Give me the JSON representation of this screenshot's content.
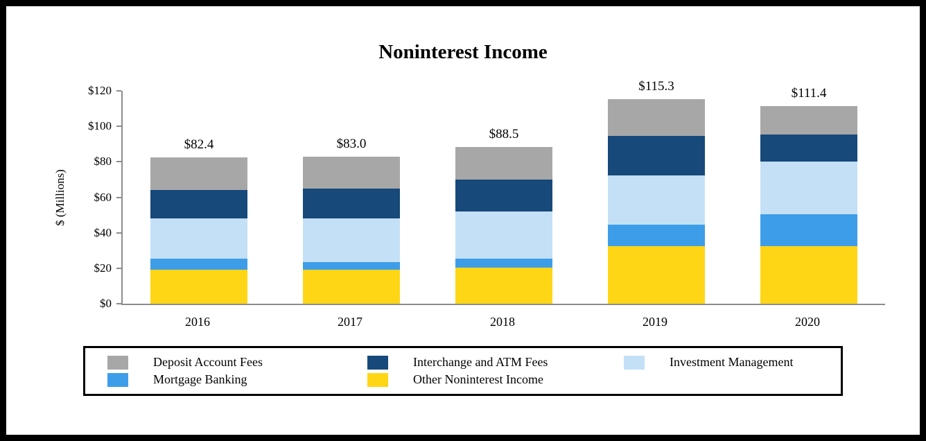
{
  "title": "Noninterest Income",
  "ylabel": "$ (Millions)",
  "chart_data": {
    "type": "bar",
    "stacked": true,
    "title": "Noninterest Income",
    "xlabel": "",
    "ylabel": "$ (Millions)",
    "ylim": [
      0,
      120
    ],
    "grid": false,
    "legend_position": "bottom",
    "categories": [
      "2016",
      "2017",
      "2018",
      "2019",
      "2020"
    ],
    "totals": [
      "$82.4",
      "$83.0",
      "$88.5",
      "$115.3",
      "$111.4"
    ],
    "total_values": [
      82.4,
      83.0,
      88.5,
      115.3,
      111.4
    ],
    "y_ticks": [
      "$0",
      "$20",
      "$40",
      "$60",
      "$80",
      "$100",
      "$120"
    ],
    "series": [
      {
        "name": "Other Noninterest Income",
        "color": "#FFD616",
        "values": [
          19.0,
          19.0,
          20.5,
          32.5,
          32.5
        ]
      },
      {
        "name": "Mortgage Banking",
        "color": "#3E9DE8",
        "values": [
          6.5,
          4.5,
          5.0,
          12.0,
          18.0
        ]
      },
      {
        "name": "Investment Management",
        "color": "#C4E0F6",
        "values": [
          22.5,
          24.5,
          26.5,
          28.0,
          29.5
        ]
      },
      {
        "name": "Interchange and ATM Fees",
        "color": "#17497B",
        "values": [
          16.0,
          17.0,
          18.0,
          22.0,
          15.5
        ]
      },
      {
        "name": "Deposit Account Fees",
        "color": "#A7A7A7",
        "values": [
          18.4,
          18.0,
          18.5,
          20.8,
          15.9
        ]
      }
    ],
    "legend": [
      {
        "label": "Deposit Account Fees",
        "color": "#A7A7A7"
      },
      {
        "label": "Interchange and ATM Fees",
        "color": "#17497B"
      },
      {
        "label": "Investment Management",
        "color": "#C4E0F6"
      },
      {
        "label": "Mortgage Banking",
        "color": "#3E9DE8"
      },
      {
        "label": "Other Noninterest Income",
        "color": "#FFD616"
      }
    ]
  }
}
